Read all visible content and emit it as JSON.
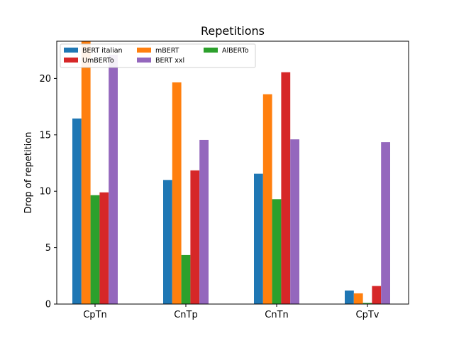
{
  "chart_data": {
    "type": "bar",
    "title": "Repetitions",
    "xlabel": "",
    "ylabel": "Drop of repetition",
    "categories": [
      "CpTn",
      "CnTp",
      "CnTn",
      "CpTv"
    ],
    "ylim": [
      0,
      23.3
    ],
    "yticks": [
      0,
      5,
      10,
      15,
      20
    ],
    "grid": false,
    "legend_placement": "top-left",
    "series": [
      {
        "name": "BERT italian",
        "color": "#1f77b4",
        "values": [
          16.45,
          11.0,
          11.55,
          1.2
        ]
      },
      {
        "name": "mBERT",
        "color": "#ff7f0e",
        "values": [
          23.3,
          19.65,
          18.6,
          0.95
        ]
      },
      {
        "name": "AlBERTo",
        "color": "#2ca02c",
        "values": [
          9.65,
          4.35,
          9.3,
          0.1
        ]
      },
      {
        "name": "UmBERTo",
        "color": "#d62728",
        "values": [
          9.9,
          11.85,
          20.55,
          1.6
        ]
      },
      {
        "name": "BERT xxl",
        "color": "#9467bd",
        "values": [
          22.1,
          14.55,
          14.6,
          14.35
        ]
      }
    ]
  }
}
